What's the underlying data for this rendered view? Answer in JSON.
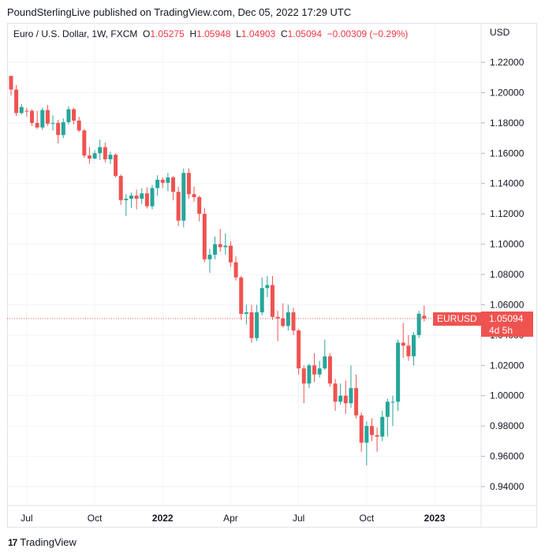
{
  "header": {
    "published": "PoundSterlingLive published on TradingView.com, Dec 05, 2022 17:29 UTC"
  },
  "legend": {
    "symbol": "Euro / U.S. Dollar, 1W, FXCM",
    "o_label": "O",
    "o_value": "1.05275",
    "h_label": "H",
    "h_value": "1.05948",
    "l_label": "L",
    "l_value": "1.04903",
    "c_label": "C",
    "c_value": "1.05094",
    "change": "−0.00309 (−0.29%)"
  },
  "currency": "USD",
  "price_tag": {
    "symbol": "EURUSD",
    "price": "1.05094",
    "countdown": "4d 5h"
  },
  "footer": {
    "brand": "TradingView"
  },
  "colors": {
    "up": "#26a69a",
    "down": "#ef5350",
    "last_price_line": "#ef5350"
  },
  "chart_data": {
    "type": "candlestick",
    "timeframe": "1W",
    "ylim": [
      0.93,
      1.23
    ],
    "y_ticks": [
      "1.22000",
      "1.20000",
      "1.18000",
      "1.16000",
      "1.14000",
      "1.12000",
      "1.10000",
      "1.08000",
      "1.06000",
      "1.04000",
      "1.02000",
      "1.00000",
      "0.98000",
      "0.96000",
      "0.94000"
    ],
    "x_ticks": [
      {
        "label": "Jul",
        "index": 3,
        "bold": false
      },
      {
        "label": "Oct",
        "index": 16,
        "bold": false
      },
      {
        "label": "2022",
        "index": 29,
        "bold": true
      },
      {
        "label": "Apr",
        "index": 42,
        "bold": false
      },
      {
        "label": "Jul",
        "index": 55,
        "bold": false
      },
      {
        "label": "Oct",
        "index": 68,
        "bold": false
      },
      {
        "label": "2023",
        "index": 81,
        "bold": true
      }
    ],
    "last_price": 1.05094,
    "candles": [
      {
        "o": 1.211,
        "h": 1.211,
        "l": 1.198,
        "c": 1.202
      },
      {
        "o": 1.202,
        "h": 1.205,
        "l": 1.1845,
        "c": 1.1865
      },
      {
        "o": 1.1865,
        "h": 1.1925,
        "l": 1.1855,
        "c": 1.1905
      },
      {
        "o": 1.188,
        "h": 1.19,
        "l": 1.184,
        "c": 1.1875
      },
      {
        "o": 1.188,
        "h": 1.189,
        "l": 1.178,
        "c": 1.18
      },
      {
        "o": 1.18,
        "h": 1.188,
        "l": 1.176,
        "c": 1.177
      },
      {
        "o": 1.177,
        "h": 1.19,
        "l": 1.1755,
        "c": 1.1885
      },
      {
        "o": 1.1885,
        "h": 1.192,
        "l": 1.178,
        "c": 1.1795
      },
      {
        "o": 1.1795,
        "h": 1.185,
        "l": 1.175,
        "c": 1.18
      },
      {
        "o": 1.18,
        "h": 1.182,
        "l": 1.1665,
        "c": 1.172
      },
      {
        "o": 1.172,
        "h": 1.183,
        "l": 1.17,
        "c": 1.1805
      },
      {
        "o": 1.1805,
        "h": 1.191,
        "l": 1.179,
        "c": 1.189
      },
      {
        "o": 1.189,
        "h": 1.19,
        "l": 1.179,
        "c": 1.1815
      },
      {
        "o": 1.1815,
        "h": 1.184,
        "l": 1.174,
        "c": 1.175
      },
      {
        "o": 1.175,
        "h": 1.176,
        "l": 1.157,
        "c": 1.1585
      },
      {
        "o": 1.1585,
        "h": 1.164,
        "l": 1.153,
        "c": 1.1565
      },
      {
        "o": 1.1565,
        "h": 1.162,
        "l": 1.156,
        "c": 1.16
      },
      {
        "o": 1.16,
        "h": 1.169,
        "l": 1.1555,
        "c": 1.164
      },
      {
        "o": 1.164,
        "h": 1.167,
        "l": 1.154,
        "c": 1.156
      },
      {
        "o": 1.156,
        "h": 1.161,
        "l": 1.153,
        "c": 1.159
      },
      {
        "o": 1.159,
        "h": 1.16,
        "l": 1.144,
        "c": 1.145
      },
      {
        "o": 1.145,
        "h": 1.146,
        "l": 1.126,
        "c": 1.129
      },
      {
        "o": 1.129,
        "h": 1.133,
        "l": 1.1185,
        "c": 1.13
      },
      {
        "o": 1.13,
        "h": 1.134,
        "l": 1.124,
        "c": 1.132
      },
      {
        "o": 1.132,
        "h": 1.136,
        "l": 1.123,
        "c": 1.13
      },
      {
        "o": 1.13,
        "h": 1.137,
        "l": 1.1265,
        "c": 1.1335
      },
      {
        "o": 1.1335,
        "h": 1.1375,
        "l": 1.1235,
        "c": 1.125
      },
      {
        "o": 1.125,
        "h": 1.139,
        "l": 1.123,
        "c": 1.137
      },
      {
        "o": 1.137,
        "h": 1.1455,
        "l": 1.132,
        "c": 1.1425
      },
      {
        "o": 1.1425,
        "h": 1.144,
        "l": 1.137,
        "c": 1.1405
      },
      {
        "o": 1.1405,
        "h": 1.147,
        "l": 1.135,
        "c": 1.144
      },
      {
        "o": 1.144,
        "h": 1.145,
        "l": 1.129,
        "c": 1.1345
      },
      {
        "o": 1.1345,
        "h": 1.138,
        "l": 1.112,
        "c": 1.1155
      },
      {
        "o": 1.1155,
        "h": 1.15,
        "l": 1.111,
        "c": 1.147
      },
      {
        "o": 1.147,
        "h": 1.15,
        "l": 1.13,
        "c": 1.133
      },
      {
        "o": 1.133,
        "h": 1.138,
        "l": 1.128,
        "c": 1.131
      },
      {
        "o": 1.131,
        "h": 1.132,
        "l": 1.115,
        "c": 1.12
      },
      {
        "o": 1.12,
        "h": 1.124,
        "l": 1.088,
        "c": 1.09
      },
      {
        "o": 1.09,
        "h": 1.097,
        "l": 1.081,
        "c": 1.093
      },
      {
        "o": 1.093,
        "h": 1.105,
        "l": 1.09,
        "c": 1.1
      },
      {
        "o": 1.1,
        "h": 1.11,
        "l": 1.095,
        "c": 1.098
      },
      {
        "o": 1.098,
        "h": 1.107,
        "l": 1.093,
        "c": 1.099
      },
      {
        "o": 1.099,
        "h": 1.102,
        "l": 1.085,
        "c": 1.088
      },
      {
        "o": 1.088,
        "h": 1.092,
        "l": 1.076,
        "c": 1.078
      },
      {
        "o": 1.078,
        "h": 1.079,
        "l": 1.05,
        "c": 1.054
      },
      {
        "o": 1.054,
        "h": 1.06,
        "l": 1.047,
        "c": 1.055
      },
      {
        "o": 1.055,
        "h": 1.06,
        "l": 1.035,
        "c": 1.038
      },
      {
        "o": 1.038,
        "h": 1.06,
        "l": 1.036,
        "c": 1.055
      },
      {
        "o": 1.055,
        "h": 1.078,
        "l": 1.053,
        "c": 1.071
      },
      {
        "o": 1.071,
        "h": 1.079,
        "l": 1.065,
        "c": 1.073
      },
      {
        "o": 1.073,
        "h": 1.079,
        "l": 1.05,
        "c": 1.052
      },
      {
        "o": 1.052,
        "h": 1.056,
        "l": 1.036,
        "c": 1.051
      },
      {
        "o": 1.051,
        "h": 1.061,
        "l": 1.045,
        "c": 1.046
      },
      {
        "o": 1.046,
        "h": 1.06,
        "l": 1.043,
        "c": 1.055
      },
      {
        "o": 1.055,
        "h": 1.058,
        "l": 1.04,
        "c": 1.043
      },
      {
        "o": 1.043,
        "h": 1.044,
        "l": 1.014,
        "c": 1.018
      },
      {
        "o": 1.018,
        "h": 1.02,
        "l": 0.995,
        "c": 1.008
      },
      {
        "o": 1.008,
        "h": 1.021,
        "l": 1.005,
        "c": 1.02
      },
      {
        "o": 1.02,
        "h": 1.028,
        "l": 1.009,
        "c": 1.014
      },
      {
        "o": 1.014,
        "h": 1.023,
        "l": 1.012,
        "c": 1.018
      },
      {
        "o": 1.018,
        "h": 1.037,
        "l": 1.017,
        "c": 1.026
      },
      {
        "o": 1.026,
        "h": 1.028,
        "l": 1.006,
        "c": 1.008
      },
      {
        "o": 1.008,
        "h": 1.011,
        "l": 0.99,
        "c": 0.996
      },
      {
        "o": 0.996,
        "h": 1.008,
        "l": 0.994,
        "c": 1.0
      },
      {
        "o": 1.0,
        "h": 1.01,
        "l": 0.988,
        "c": 0.995
      },
      {
        "o": 0.995,
        "h": 1.02,
        "l": 0.992,
        "c": 1.005
      },
      {
        "o": 1.005,
        "h": 1.014,
        "l": 0.985,
        "c": 0.987
      },
      {
        "o": 0.987,
        "h": 0.989,
        "l": 0.963,
        "c": 0.969
      },
      {
        "o": 0.969,
        "h": 0.983,
        "l": 0.954,
        "c": 0.98
      },
      {
        "o": 0.98,
        "h": 0.985,
        "l": 0.97,
        "c": 0.974
      },
      {
        "o": 0.974,
        "h": 0.979,
        "l": 0.963,
        "c": 0.973
      },
      {
        "o": 0.973,
        "h": 0.99,
        "l": 0.97,
        "c": 0.986
      },
      {
        "o": 0.986,
        "h": 0.998,
        "l": 0.973,
        "c": 0.996
      },
      {
        "o": 0.996,
        "h": 1.0,
        "l": 0.98,
        "c": 0.996
      },
      {
        "o": 0.996,
        "h": 1.037,
        "l": 0.99,
        "c": 1.035
      },
      {
        "o": 1.035,
        "h": 1.048,
        "l": 1.025,
        "c": 1.033
      },
      {
        "o": 1.033,
        "h": 1.04,
        "l": 1.023,
        "c": 1.026
      },
      {
        "o": 1.026,
        "h": 1.042,
        "l": 1.02,
        "c": 1.04
      },
      {
        "o": 1.04,
        "h": 1.056,
        "l": 1.038,
        "c": 1.054
      },
      {
        "o": 1.05275,
        "h": 1.05948,
        "l": 1.04903,
        "c": 1.05094
      }
    ]
  }
}
